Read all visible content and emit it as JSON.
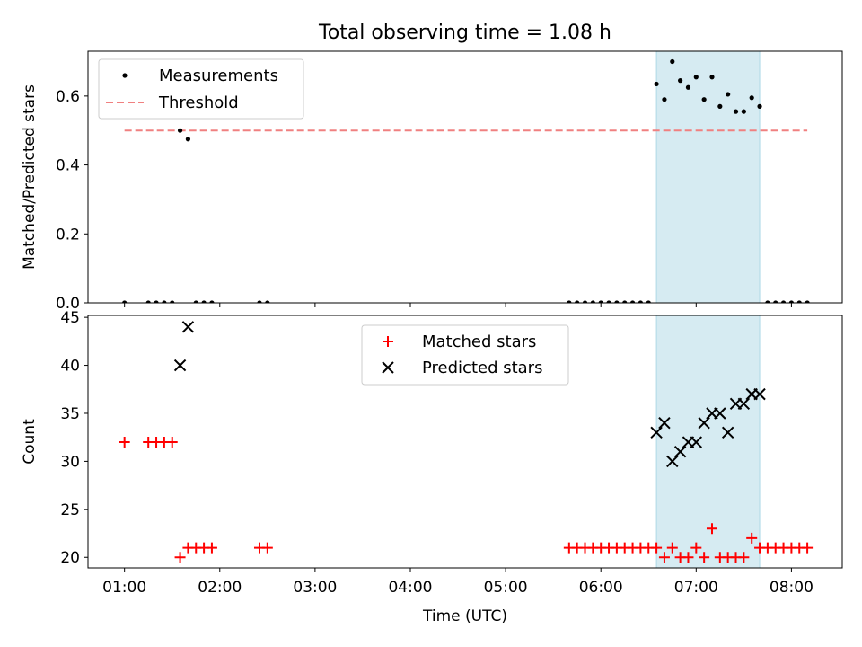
{
  "title": "Total observing time = 1.08 h",
  "chart_data": [
    {
      "type": "scatter",
      "ylabel": "Matched/Predicted stars",
      "xlim": [
        "00:37",
        "08:32"
      ],
      "ylim": [
        0,
        0.73
      ],
      "yticks": [
        "0.0",
        "0.2",
        "0.4",
        "0.6"
      ],
      "highlight": {
        "x_start": "06:35",
        "x_end": "07:40",
        "color": "#add8e6"
      },
      "legend": {
        "placement": "top-left",
        "entries": [
          {
            "label": "Measurements",
            "marker": "dot",
            "color": "#000000"
          },
          {
            "label": "Threshold",
            "marker": "dashed-line",
            "color": "#f08080"
          }
        ]
      },
      "threshold": {
        "value": 0.5,
        "x_start": "01:00",
        "x_end": "08:10",
        "color": "#f08080"
      },
      "series": [
        {
          "name": "Measurements",
          "color": "#000000",
          "points": [
            [
              "01:00",
              0
            ],
            [
              "01:15",
              0
            ],
            [
              "01:20",
              0
            ],
            [
              "01:25",
              0
            ],
            [
              "01:30",
              0
            ],
            [
              "01:35",
              0.5
            ],
            [
              "01:40",
              0.475
            ],
            [
              "01:45",
              0
            ],
            [
              "01:50",
              0
            ],
            [
              "01:55",
              0
            ],
            [
              "02:25",
              0
            ],
            [
              "02:30",
              0
            ],
            [
              "05:40",
              0
            ],
            [
              "05:45",
              0
            ],
            [
              "05:50",
              0
            ],
            [
              "05:55",
              0
            ],
            [
              "06:00",
              0
            ],
            [
              "06:05",
              0
            ],
            [
              "06:10",
              0
            ],
            [
              "06:15",
              0
            ],
            [
              "06:20",
              0
            ],
            [
              "06:25",
              0
            ],
            [
              "06:30",
              0
            ],
            [
              "06:35",
              0.635
            ],
            [
              "06:40",
              0.59
            ],
            [
              "06:45",
              0.7
            ],
            [
              "06:50",
              0.645
            ],
            [
              "06:55",
              0.625
            ],
            [
              "07:00",
              0.655
            ],
            [
              "07:05",
              0.59
            ],
            [
              "07:10",
              0.655
            ],
            [
              "07:15",
              0.57
            ],
            [
              "07:20",
              0.605
            ],
            [
              "07:25",
              0.555
            ],
            [
              "07:30",
              0.555
            ],
            [
              "07:35",
              0.595
            ],
            [
              "07:40",
              0.57
            ],
            [
              "07:45",
              0
            ],
            [
              "07:50",
              0
            ],
            [
              "07:55",
              0
            ],
            [
              "08:00",
              0
            ],
            [
              "08:05",
              0
            ],
            [
              "08:10",
              0
            ]
          ]
        }
      ]
    },
    {
      "type": "scatter",
      "ylabel": "Count",
      "xlabel": "Time (UTC)",
      "xlim": [
        "00:37",
        "08:32"
      ],
      "ylim": [
        18.9,
        45.2
      ],
      "yticks": [
        "20",
        "25",
        "30",
        "35",
        "40",
        "45"
      ],
      "xticks": [
        "01:00",
        "02:00",
        "03:00",
        "04:00",
        "05:00",
        "06:00",
        "07:00",
        "08:00"
      ],
      "highlight": {
        "x_start": "06:35",
        "x_end": "07:40",
        "color": "#add8e6"
      },
      "legend": {
        "placement": "upper-center",
        "entries": [
          {
            "label": "Matched stars",
            "marker": "plus",
            "color": "#ff0000"
          },
          {
            "label": "Predicted stars",
            "marker": "x",
            "color": "#000000"
          }
        ]
      },
      "series": [
        {
          "name": "Matched stars",
          "color": "#ff0000",
          "points": [
            [
              "01:00",
              32
            ],
            [
              "01:15",
              32
            ],
            [
              "01:20",
              32
            ],
            [
              "01:25",
              32
            ],
            [
              "01:30",
              32
            ],
            [
              "01:35",
              20
            ],
            [
              "01:40",
              21
            ],
            [
              "01:45",
              21
            ],
            [
              "01:50",
              21
            ],
            [
              "01:55",
              21
            ],
            [
              "02:25",
              21
            ],
            [
              "02:30",
              21
            ],
            [
              "05:40",
              21
            ],
            [
              "05:45",
              21
            ],
            [
              "05:50",
              21
            ],
            [
              "05:55",
              21
            ],
            [
              "06:00",
              21
            ],
            [
              "06:05",
              21
            ],
            [
              "06:10",
              21
            ],
            [
              "06:15",
              21
            ],
            [
              "06:20",
              21
            ],
            [
              "06:25",
              21
            ],
            [
              "06:30",
              21
            ],
            [
              "06:35",
              21
            ],
            [
              "06:40",
              20
            ],
            [
              "06:45",
              21
            ],
            [
              "06:50",
              20
            ],
            [
              "06:55",
              20
            ],
            [
              "07:00",
              21
            ],
            [
              "07:05",
              20
            ],
            [
              "07:10",
              23
            ],
            [
              "07:15",
              20
            ],
            [
              "07:20",
              20
            ],
            [
              "07:25",
              20
            ],
            [
              "07:30",
              20
            ],
            [
              "07:35",
              22
            ],
            [
              "07:40",
              21
            ],
            [
              "07:45",
              21
            ],
            [
              "07:50",
              21
            ],
            [
              "07:55",
              21
            ],
            [
              "08:00",
              21
            ],
            [
              "08:05",
              21
            ],
            [
              "08:10",
              21
            ]
          ]
        },
        {
          "name": "Predicted stars",
          "color": "#000000",
          "points": [
            [
              "01:35",
              40
            ],
            [
              "01:40",
              44
            ],
            [
              "06:35",
              33
            ],
            [
              "06:40",
              34
            ],
            [
              "06:45",
              30
            ],
            [
              "06:50",
              31
            ],
            [
              "06:55",
              32
            ],
            [
              "07:00",
              32
            ],
            [
              "07:05",
              34
            ],
            [
              "07:10",
              35
            ],
            [
              "07:15",
              35
            ],
            [
              "07:20",
              33
            ],
            [
              "07:25",
              36
            ],
            [
              "07:30",
              36
            ],
            [
              "07:35",
              37
            ],
            [
              "07:40",
              37
            ]
          ]
        }
      ]
    }
  ]
}
